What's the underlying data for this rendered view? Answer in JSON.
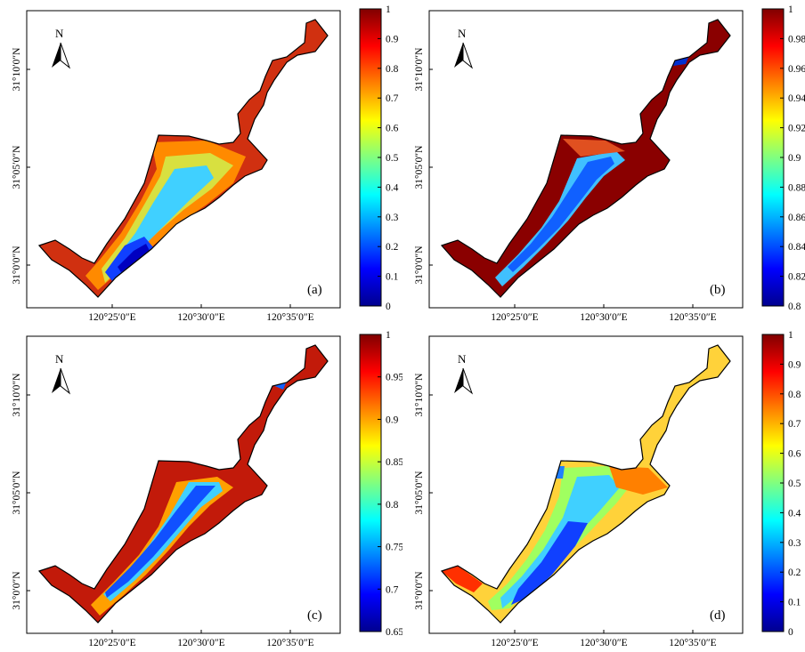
{
  "panels": [
    {
      "label": "(a)",
      "colorbar_ticks": [
        "1",
        "0.9",
        "0.8",
        "0.7",
        "0.6",
        "0.5",
        "0.4",
        "0.3",
        "0.2",
        "0.1",
        "0"
      ],
      "shading": "a"
    },
    {
      "label": "(b)",
      "colorbar_ticks": [
        "1",
        "0.98",
        "0.96",
        "0.94",
        "0.92",
        "0.9",
        "0.88",
        "0.86",
        "0.84",
        "0.82",
        "0.8"
      ],
      "shading": "b"
    },
    {
      "label": "(c)",
      "colorbar_ticks": [
        "1",
        "0.95",
        "0.9",
        "0.85",
        "0.8",
        "0.75",
        "0.7",
        "0.65"
      ],
      "shading": "c"
    },
    {
      "label": "(d)",
      "colorbar_ticks": [
        "1",
        "0.9",
        "0.8",
        "0.7",
        "0.6",
        "0.5",
        "0.4",
        "0.3",
        "0.2",
        "0.1",
        "0"
      ],
      "shading": "d"
    }
  ],
  "x_ticks": [
    "120°25′0″E",
    "120°30′0″E",
    "120°35′0″E"
  ],
  "y_ticks": [
    "31°10′0″N",
    "31°05′0″N",
    "31°0′0″N"
  ],
  "north_label": "N",
  "colormap": [
    "#00008f",
    "#0000ff",
    "#0080ff",
    "#00ffff",
    "#80ff80",
    "#ffff00",
    "#ff8000",
    "#ff0000",
    "#800000"
  ]
}
